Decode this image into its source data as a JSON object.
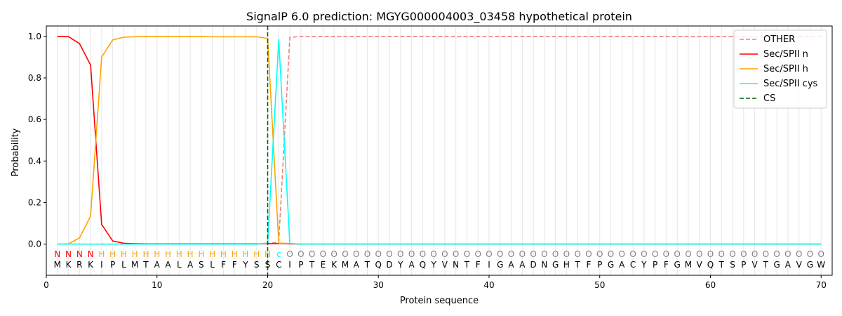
{
  "chart_data": {
    "type": "line",
    "title": "SignalP 6.0 prediction: MGYG000004003_03458 hypothetical protein",
    "xlabel": "Protein sequence",
    "ylabel": "Probability",
    "xlim": [
      0,
      71
    ],
    "ylim": [
      -0.15,
      1.05
    ],
    "xticks": [
      0,
      10,
      20,
      30,
      40,
      50,
      60,
      70
    ],
    "yticks": [
      0.0,
      0.2,
      0.4,
      0.6,
      0.8,
      1.0
    ],
    "xtick_labels": [
      "0",
      "10",
      "20",
      "30",
      "40",
      "50",
      "60",
      "70"
    ],
    "ytick_labels": [
      "0.0",
      "0.2",
      "0.4",
      "0.6",
      "0.8",
      "1.0"
    ],
    "grid": "vertical lines at each residue",
    "legend_position": "top-right",
    "sequence": [
      "M",
      "K",
      "R",
      "K",
      "I",
      "P",
      "L",
      "M",
      "T",
      "A",
      "A",
      "L",
      "A",
      "S",
      "L",
      "F",
      "F",
      "Y",
      "S",
      "S",
      "C",
      "I",
      "P",
      "T",
      "E",
      "K",
      "M",
      "A",
      "T",
      "Q",
      "D",
      "Y",
      "A",
      "Q",
      "Y",
      "V",
      "N",
      "T",
      "F",
      "I",
      "G",
      "A",
      "A",
      "D",
      "N",
      "G",
      "H",
      "T",
      "F",
      "P",
      "G",
      "A",
      "C",
      "Y",
      "P",
      "F",
      "G",
      "M",
      "V",
      "Q",
      "T",
      "S",
      "P",
      "V",
      "T",
      "G",
      "A",
      "V",
      "G",
      "W"
    ],
    "labels": [
      "N",
      "N",
      "N",
      "N",
      "H",
      "H",
      "H",
      "H",
      "H",
      "H",
      "H",
      "H",
      "H",
      "H",
      "H",
      "H",
      "H",
      "H",
      "H",
      "H",
      "c",
      "O",
      "O",
      "O",
      "O",
      "O",
      "O",
      "O",
      "O",
      "O",
      "O",
      "O",
      "O",
      "O",
      "O",
      "O",
      "O",
      "O",
      "O",
      "O",
      "O",
      "O",
      "O",
      "O",
      "O",
      "O",
      "O",
      "O",
      "O",
      "O",
      "O",
      "O",
      "O",
      "O",
      "O",
      "O",
      "O",
      "O",
      "O",
      "O",
      "O",
      "O",
      "O",
      "O",
      "O",
      "O",
      "O",
      "O",
      "O",
      "O"
    ],
    "label_colors": {
      "N": "#ff0000",
      "H": "#ffa500",
      "c": "#00ffff",
      "O": "#808080"
    },
    "series": [
      {
        "name": "OTHER",
        "color": "#f08080",
        "dash": "dashed",
        "values": [
          0,
          0,
          0,
          0,
          0,
          0,
          0,
          0,
          0,
          0,
          0,
          0,
          0,
          0,
          0,
          0,
          0,
          0,
          0,
          0.003,
          0.01,
          0.995,
          1,
          1,
          1,
          1,
          1,
          1,
          1,
          1,
          1,
          1,
          1,
          1,
          1,
          1,
          1,
          1,
          1,
          1,
          1,
          1,
          1,
          1,
          1,
          1,
          1,
          1,
          1,
          1,
          1,
          1,
          1,
          1,
          1,
          1,
          1,
          1,
          1,
          1,
          1,
          1,
          1,
          1,
          1,
          1,
          1,
          1,
          1,
          1
        ]
      },
      {
        "name": "Sec/SPII n",
        "color": "#ff0000",
        "dash": "solid",
        "values": [
          1.0,
          0.999,
          0.965,
          0.862,
          0.095,
          0.015,
          0.004,
          0.002,
          0.001,
          0.001,
          0.001,
          0.001,
          0.001,
          0.001,
          0.001,
          0.001,
          0.001,
          0.001,
          0.001,
          0.002,
          0.003,
          0.001,
          0,
          0,
          0,
          0,
          0,
          0,
          0,
          0,
          0,
          0,
          0,
          0,
          0,
          0,
          0,
          0,
          0,
          0,
          0,
          0,
          0,
          0,
          0,
          0,
          0,
          0,
          0,
          0,
          0,
          0,
          0,
          0,
          0,
          0,
          0,
          0,
          0,
          0,
          0,
          0,
          0,
          0,
          0,
          0,
          0,
          0,
          0,
          0
        ]
      },
      {
        "name": "Sec/SPII h",
        "color": "#ffa500",
        "dash": "solid",
        "values": [
          0,
          0.001,
          0.03,
          0.135,
          0.9,
          0.983,
          0.996,
          0.998,
          0.999,
          0.999,
          0.999,
          0.999,
          0.999,
          0.999,
          0.998,
          0.998,
          0.998,
          0.998,
          0.998,
          0.99,
          0.005,
          0.003,
          0,
          0,
          0,
          0,
          0,
          0,
          0,
          0,
          0,
          0,
          0,
          0,
          0,
          0,
          0,
          0,
          0,
          0,
          0,
          0,
          0,
          0,
          0,
          0,
          0,
          0,
          0,
          0,
          0,
          0,
          0,
          0,
          0,
          0,
          0,
          0,
          0,
          0,
          0,
          0,
          0,
          0,
          0,
          0,
          0,
          0,
          0,
          0
        ]
      },
      {
        "name": "Sec/SPII cys",
        "color": "#00ffff",
        "dash": "solid",
        "values": [
          0,
          0,
          0,
          0,
          0,
          0,
          0,
          0,
          0,
          0,
          0,
          0,
          0,
          0,
          0,
          0,
          0,
          0,
          0,
          0.005,
          0.985,
          0.003,
          0,
          0,
          0,
          0,
          0,
          0,
          0,
          0,
          0,
          0,
          0,
          0,
          0,
          0,
          0,
          0,
          0,
          0,
          0,
          0,
          0,
          0,
          0,
          0,
          0,
          0,
          0,
          0,
          0,
          0,
          0,
          0,
          0,
          0,
          0,
          0,
          0,
          0,
          0,
          0,
          0,
          0,
          0,
          0,
          0,
          0,
          0,
          0
        ]
      },
      {
        "name": "CS",
        "color": "#006400",
        "dash": "dashed",
        "type": "vline",
        "x": 20
      }
    ]
  }
}
